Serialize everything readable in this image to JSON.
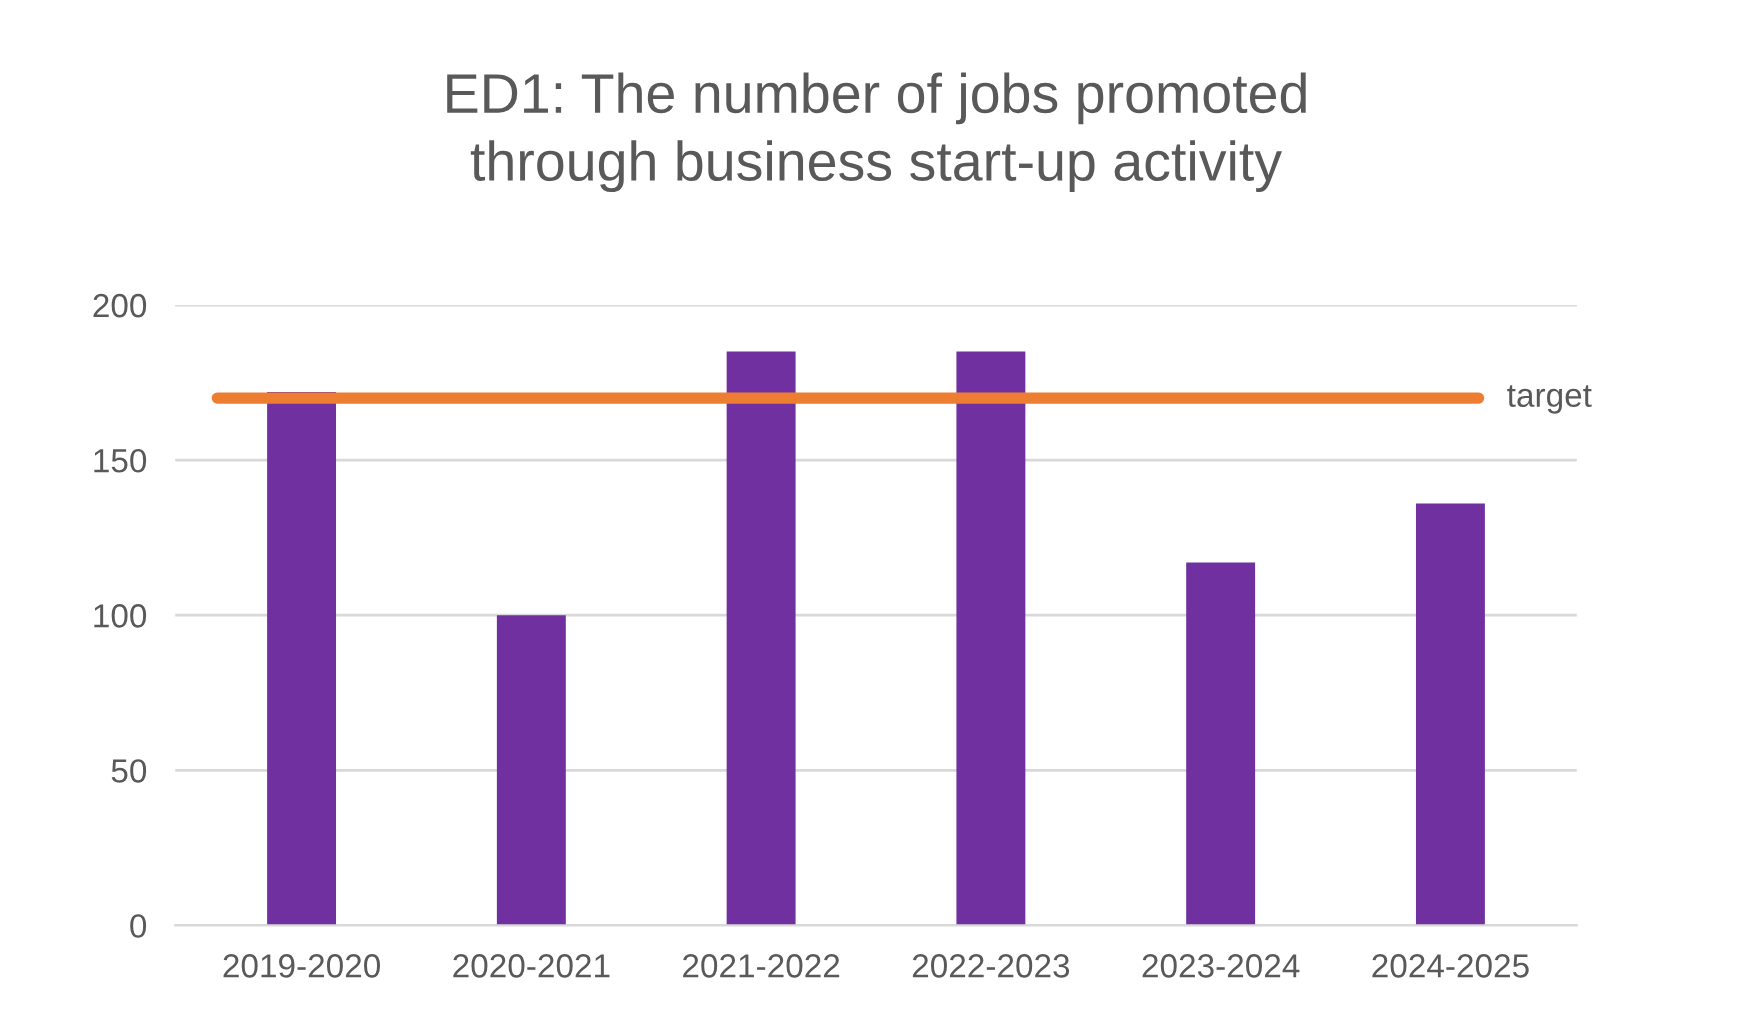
{
  "chart_data": {
    "type": "bar",
    "title": "ED1: The number of jobs promoted\nthrough business start-up activity",
    "categories": [
      "2019-2020",
      "2020-2021",
      "2021-2022",
      "2022-2023",
      "2023-2024",
      "2024-2025"
    ],
    "values": [
      172,
      100,
      185,
      185,
      117,
      136
    ],
    "color": "#7030a0",
    "ylim": [
      0,
      200
    ],
    "yticks": [
      0,
      50,
      100,
      150,
      200
    ],
    "grid": "y",
    "ref_lines": [
      {
        "axis": "y",
        "value": 170,
        "label": "target",
        "color": "#ed7d31",
        "line_style": "solid"
      }
    ]
  }
}
